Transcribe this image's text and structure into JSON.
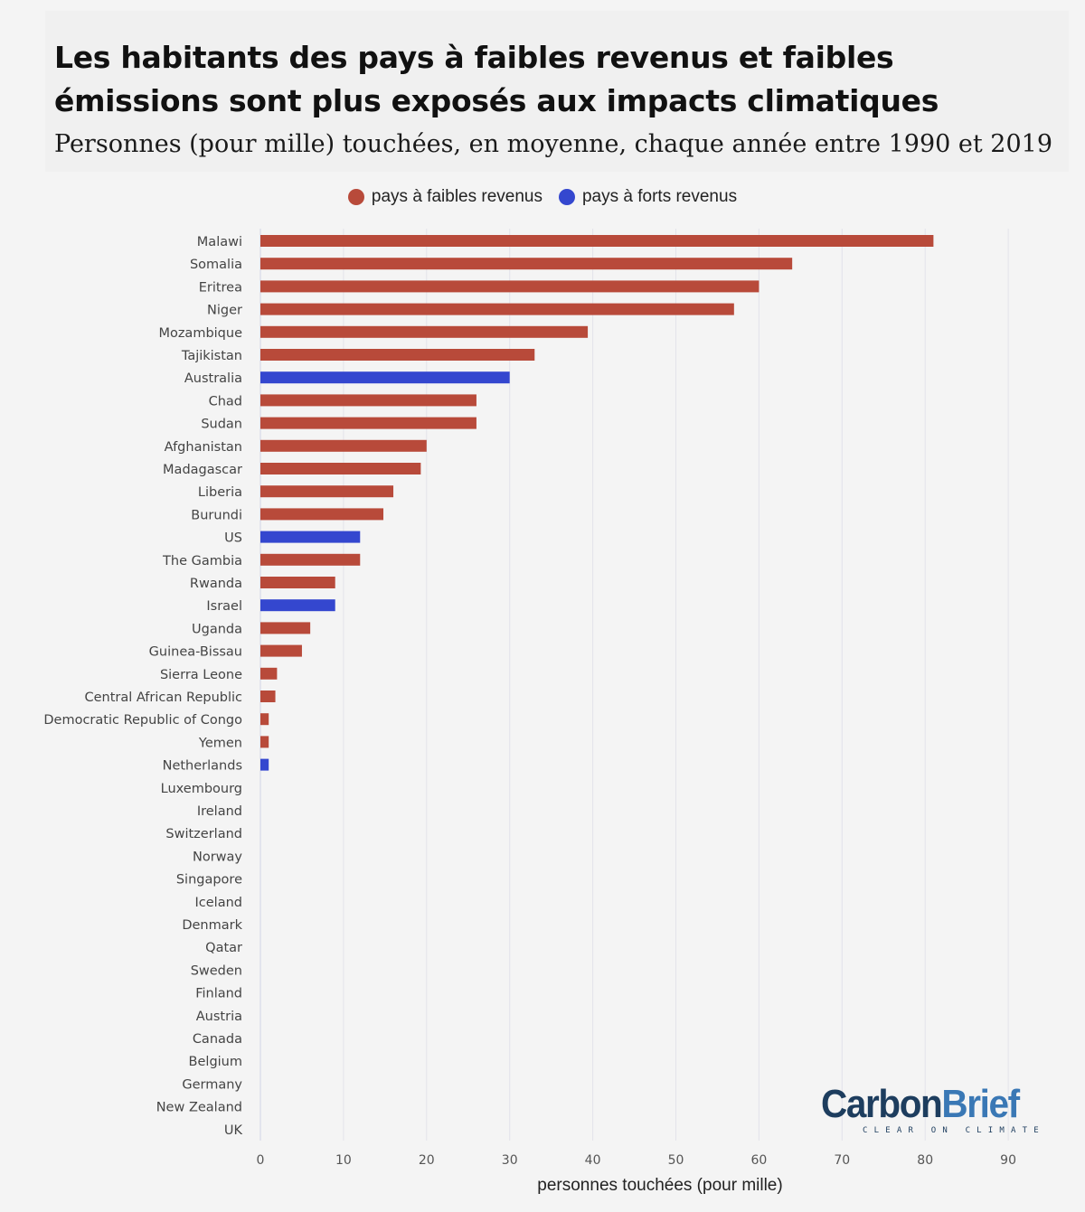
{
  "chart_data": {
    "type": "bar",
    "orientation": "horizontal",
    "title": "Les habitants des pays à faibles revenus et faibles émissions sont plus exposés aux impacts climatiques",
    "subtitle": "Personnes (pour mille) touchées, en moyenne, chaque année entre 1990 et 2019",
    "xlabel": "personnes touchées (pour mille)",
    "ylabel": "",
    "xlim": [
      0,
      90
    ],
    "xticks": [
      0,
      10,
      20,
      30,
      40,
      50,
      60,
      70,
      80,
      90
    ],
    "grid": "vertical",
    "legend_position": "top-center",
    "legend": [
      {
        "label": "pays à faibles revenus",
        "color": "#b84a3a"
      },
      {
        "label": "pays à forts revenus",
        "color": "#3447cf"
      }
    ],
    "categories": [
      "Malawi",
      "Somalia",
      "Eritrea",
      "Niger",
      "Mozambique",
      "Tajikistan",
      "Australia",
      "Chad",
      "Sudan",
      "Afghanistan",
      "Madagascar",
      "Liberia",
      "Burundi",
      "US",
      "The Gambia",
      "Rwanda",
      "Israel",
      "Uganda",
      "Guinea-Bissau",
      "Sierra Leone",
      "Central African Republic",
      "Democratic Republic of Congo",
      "Yemen",
      "Netherlands",
      "Luxembourg",
      "Ireland",
      "Switzerland",
      "Norway",
      "Singapore",
      "Iceland",
      "Denmark",
      "Qatar",
      "Sweden",
      "Finland",
      "Austria",
      "Canada",
      "Belgium",
      "Germany",
      "New Zealand",
      "UK"
    ],
    "values": [
      81,
      64,
      60,
      57,
      39.4,
      33,
      30,
      26,
      26,
      20,
      19.3,
      16,
      14.8,
      12,
      12,
      9,
      9,
      6,
      5,
      2,
      1.8,
      1,
      1,
      1,
      0,
      0,
      0,
      0,
      0,
      0,
      0,
      0,
      0,
      0,
      0,
      0,
      0,
      0,
      0,
      0
    ],
    "group": [
      "low",
      "low",
      "low",
      "low",
      "low",
      "low",
      "high",
      "low",
      "low",
      "low",
      "low",
      "low",
      "low",
      "high",
      "low",
      "low",
      "high",
      "low",
      "low",
      "low",
      "low",
      "low",
      "low",
      "high",
      "high",
      "high",
      "high",
      "high",
      "high",
      "high",
      "high",
      "high",
      "high",
      "high",
      "high",
      "high",
      "high",
      "high",
      "high",
      "high"
    ]
  },
  "logo": {
    "carbon": "Carbon",
    "brief": "Brief",
    "tagline": "CLEAR ON CLIMATE"
  }
}
